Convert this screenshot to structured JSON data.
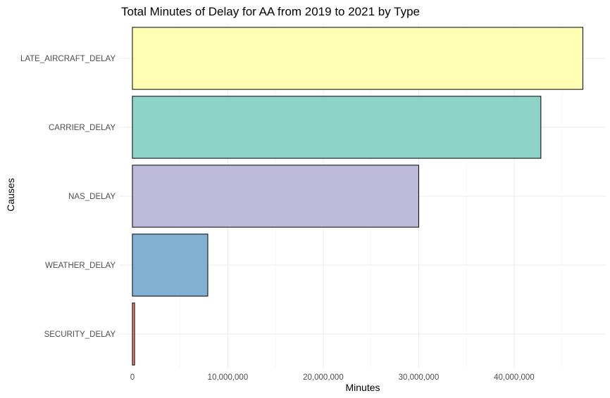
{
  "chart_data": {
    "type": "bar",
    "orientation": "horizontal",
    "title": "Total Minutes of Delay for AA from 2019 to 2021 by Type",
    "xlabel": "Minutes",
    "ylabel": "Causes",
    "categories": [
      "LATE_AIRCRAFT_DELAY",
      "CARRIER_DELAY",
      "NAS_DELAY",
      "WEATHER_DELAY",
      "SECURITY_DELAY"
    ],
    "values": [
      47200000,
      42800000,
      30000000,
      7900000,
      230000
    ],
    "colors": [
      "#ffffb3",
      "#8dd3c7",
      "#bebada",
      "#80b1d3",
      "#fb8072"
    ],
    "xlim": [
      -1400000,
      49600000
    ],
    "x_ticks": [
      0,
      10000000,
      20000000,
      30000000,
      40000000
    ],
    "x_tick_labels": [
      "0",
      "10,000,000",
      "20,000,000",
      "30,000,000",
      "40,000,000"
    ],
    "grid": true,
    "legend": "none"
  }
}
